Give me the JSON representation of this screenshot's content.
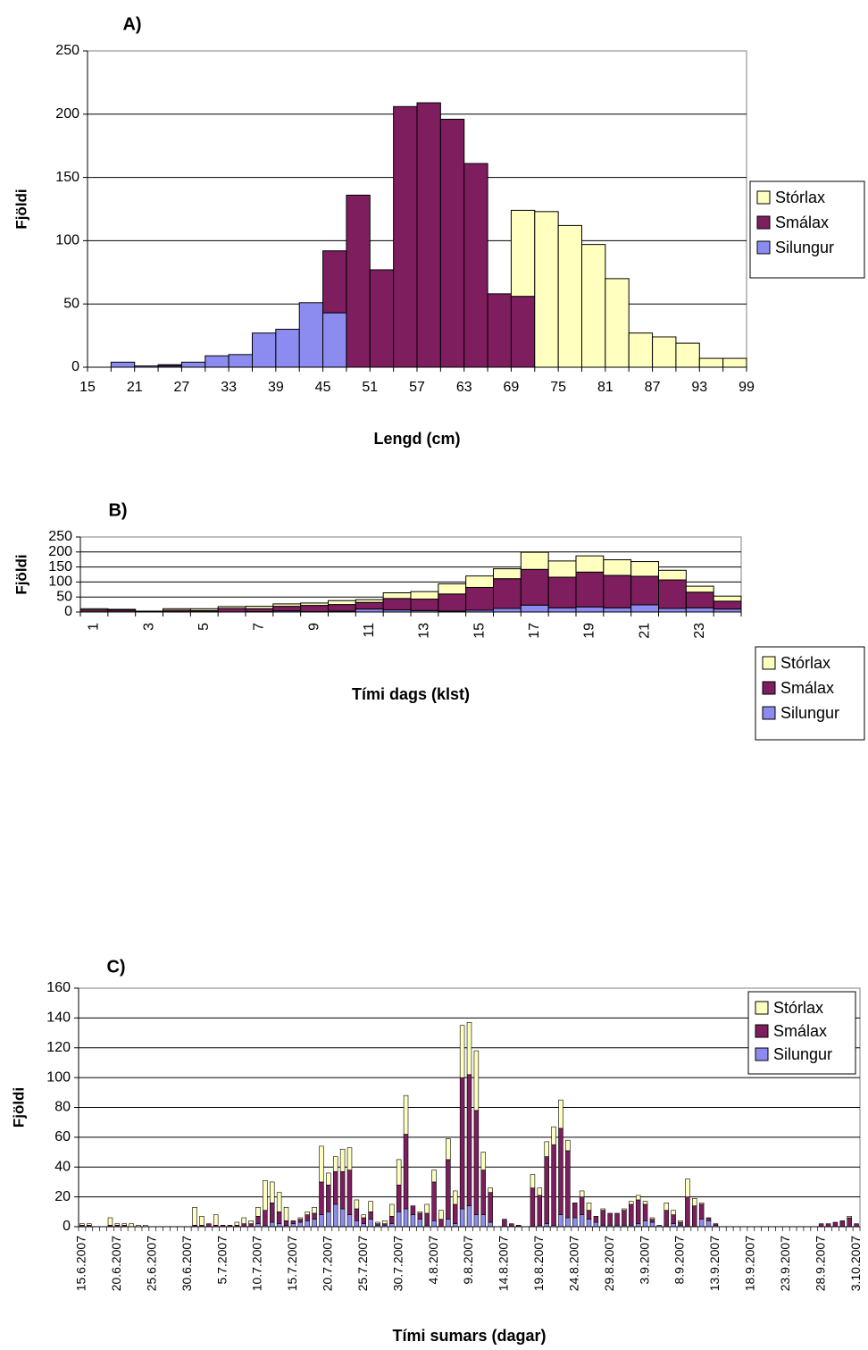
{
  "colors": {
    "storlax": "#FFFFC0",
    "smalax": "#7E1E5E",
    "silungur": "#8C8CF0",
    "bar_stroke": "#000000",
    "grid": "#000000"
  },
  "chart_data": [
    {
      "id": "A",
      "type": "bar",
      "stacked": true,
      "title": "A)",
      "xlabel": "Lengd (cm)",
      "ylabel": "Fjöldi",
      "ylim": [
        0,
        250
      ],
      "yticks": [
        0,
        50,
        100,
        150,
        200,
        250
      ],
      "grid": true,
      "legend_position": "right",
      "x_tick_labels": [
        "15",
        "21",
        "27",
        "33",
        "39",
        "45",
        "51",
        "57",
        "63",
        "69",
        "75",
        "81",
        "87",
        "93",
        "99"
      ],
      "categories": [
        15,
        18,
        21,
        24,
        27,
        30,
        33,
        36,
        39,
        42,
        45,
        48,
        51,
        54,
        57,
        60,
        63,
        66,
        69,
        72,
        75,
        78,
        81,
        84,
        87,
        90,
        93,
        96
      ],
      "series": [
        {
          "name": "Silungur",
          "color_key": "silungur",
          "values": [
            0,
            4,
            1,
            1,
            4,
            9,
            10,
            27,
            30,
            51,
            43,
            0,
            0,
            0,
            0,
            0,
            0,
            0,
            0,
            0,
            0,
            0,
            0,
            0,
            0,
            0,
            0,
            0
          ]
        },
        {
          "name": "Smálax",
          "color_key": "smalax",
          "values": [
            0,
            0,
            0,
            1,
            0,
            0,
            0,
            0,
            0,
            0,
            49,
            136,
            77,
            206,
            209,
            196,
            161,
            58,
            56,
            0,
            0,
            0,
            0,
            0,
            0,
            0,
            0,
            0
          ]
        },
        {
          "name": "Stórlax",
          "color_key": "storlax",
          "values": [
            0,
            0,
            0,
            0,
            0,
            0,
            0,
            0,
            0,
            0,
            0,
            0,
            0,
            0,
            0,
            0,
            0,
            0,
            68,
            123,
            112,
            97,
            70,
            27,
            24,
            19,
            7,
            7
          ]
        }
      ]
    },
    {
      "id": "B",
      "type": "bar",
      "stacked": true,
      "title": "B)",
      "xlabel": "Tími dags (klst)",
      "ylabel": "Fjöldi",
      "ylim": [
        0,
        250
      ],
      "yticks": [
        0,
        50,
        100,
        150,
        200,
        250
      ],
      "grid": true,
      "legend_position": "right",
      "x_tick_labels": [
        "1",
        "3",
        "5",
        "7",
        "9",
        "11",
        "13",
        "15",
        "17",
        "19",
        "21",
        "23"
      ],
      "categories": [
        1,
        2,
        3,
        4,
        5,
        6,
        7,
        8,
        9,
        10,
        11,
        12,
        13,
        14,
        15,
        16,
        17,
        18,
        19,
        20,
        21,
        22,
        23,
        24
      ],
      "series": [
        {
          "name": "Silungur",
          "color_key": "silungur",
          "values": [
            0,
            0,
            0,
            1,
            1,
            0,
            1,
            4,
            1,
            3,
            10,
            7,
            5,
            3,
            6,
            12,
            23,
            14,
            17,
            14,
            24,
            12,
            14,
            10
          ]
        },
        {
          "name": "Smálax",
          "color_key": "smalax",
          "values": [
            7,
            6,
            3,
            5,
            4,
            12,
            10,
            15,
            21,
            22,
            22,
            38,
            38,
            57,
            76,
            99,
            119,
            102,
            116,
            108,
            95,
            95,
            52,
            26
          ]
        },
        {
          "name": "Stórlax",
          "color_key": "storlax",
          "values": [
            4,
            3,
            0,
            5,
            6,
            6,
            8,
            8,
            8,
            13,
            9,
            19,
            25,
            34,
            38,
            33,
            57,
            54,
            54,
            52,
            49,
            32,
            20,
            17
          ]
        }
      ]
    },
    {
      "id": "C",
      "type": "bar",
      "stacked": true,
      "title": "C)",
      "xlabel": "Tími sumars (dagar)",
      "ylabel": "Fjöldi",
      "ylim": [
        0,
        160
      ],
      "yticks": [
        0,
        20,
        40,
        60,
        80,
        100,
        120,
        140,
        160
      ],
      "grid": true,
      "legend_position": "top-right",
      "x_tick_labels": [
        "15.6.2007",
        "20.6.2007",
        "25.6.2007",
        "30.6.2007",
        "5.7.2007",
        "10.7.2007",
        "15.7.2007",
        "20.7.2007",
        "25.7.2007",
        "30.7.2007",
        "4.8.2007",
        "9.8.2007",
        "14.8.2007",
        "19.8.2007",
        "24.8.2007",
        "29.8.2007",
        "3.9.2007",
        "8.9.2007",
        "13.9.2007",
        "18.9.2007",
        "23.9.2007",
        "28.9.2007",
        "3.10.2007"
      ],
      "day_count": 111,
      "series": [
        {
          "name": "Silungur",
          "color_key": "silungur",
          "values": [
            0,
            0,
            0,
            0,
            0,
            0,
            0,
            0,
            0,
            0,
            0,
            0,
            0,
            0,
            0,
            0,
            0,
            0,
            0,
            0,
            0,
            0,
            0,
            0,
            0,
            2,
            1,
            3,
            2,
            1,
            2,
            3,
            4,
            5,
            8,
            10,
            15,
            12,
            8,
            4,
            2,
            5,
            1,
            1,
            2,
            10,
            12,
            8,
            5,
            1,
            4,
            0,
            5,
            2,
            12,
            14,
            8,
            8,
            3,
            0,
            0,
            0,
            0,
            0,
            0,
            1,
            2,
            1,
            8,
            6,
            6,
            8,
            5,
            3,
            1,
            1,
            1,
            1,
            1,
            2,
            4,
            3,
            1,
            0,
            2,
            1,
            0,
            0,
            5,
            4,
            1,
            0,
            0,
            0,
            0,
            0,
            0,
            0,
            0,
            0,
            0,
            0,
            0,
            0,
            0,
            0,
            0,
            0,
            0,
            0,
            0
          ]
        },
        {
          "name": "Smálax",
          "color_key": "smalax",
          "values": [
            1,
            1,
            0,
            0,
            1,
            1,
            1,
            0,
            0,
            0,
            0,
            0,
            0,
            0,
            0,
            0,
            1,
            1,
            2,
            1,
            1,
            1,
            1,
            2,
            2,
            5,
            10,
            13,
            8,
            3,
            2,
            2,
            4,
            4,
            22,
            18,
            22,
            25,
            30,
            8,
            4,
            5,
            1,
            1,
            5,
            18,
            50,
            6,
            4,
            8,
            26,
            5,
            40,
            13,
            88,
            88,
            70,
            30,
            20,
            0,
            5,
            2,
            1,
            0,
            26,
            20,
            45,
            54,
            58,
            45,
            10,
            12,
            6,
            4,
            10,
            8,
            8,
            10,
            14,
            16,
            11,
            2,
            0,
            11,
            6,
            2,
            20,
            14,
            10,
            2,
            1,
            0,
            0,
            0,
            0,
            0,
            0,
            0,
            0,
            0,
            0,
            0,
            0,
            0,
            0,
            2,
            2,
            3,
            4,
            6,
            2
          ]
        },
        {
          "name": "Stórlax",
          "color_key": "storlax",
          "values": [
            1,
            1,
            0,
            0,
            5,
            1,
            1,
            2,
            1,
            1,
            0,
            0,
            0,
            0,
            0,
            0,
            12,
            6,
            0,
            7,
            0,
            0,
            2,
            4,
            2,
            6,
            20,
            14,
            13,
            9,
            0,
            1,
            2,
            4,
            24,
            8,
            10,
            15,
            15,
            6,
            2,
            7,
            1,
            2,
            8,
            17,
            26,
            0,
            1,
            6,
            8,
            6,
            14,
            9,
            35,
            35,
            40,
            12,
            3,
            0,
            0,
            0,
            0,
            0,
            9,
            5,
            10,
            12,
            19,
            7,
            0,
            4,
            5,
            0,
            1,
            0,
            0,
            1,
            2,
            3,
            2,
            1,
            0,
            5,
            3,
            1,
            12,
            5,
            1,
            0,
            0,
            0,
            0,
            0,
            0,
            0,
            0,
            0,
            0,
            0,
            0,
            0,
            0,
            0,
            0,
            0,
            0,
            0,
            0,
            1,
            0
          ]
        }
      ]
    }
  ]
}
